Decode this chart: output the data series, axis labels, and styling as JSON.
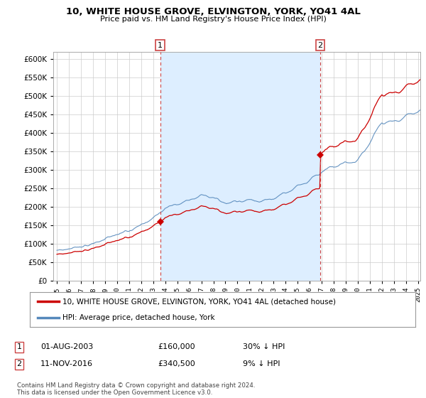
{
  "title": "10, WHITE HOUSE GROVE, ELVINGTON, YORK, YO41 4AL",
  "subtitle": "Price paid vs. HM Land Registry's House Price Index (HPI)",
  "ylim": [
    0,
    620000
  ],
  "yticks": [
    0,
    50000,
    100000,
    150000,
    200000,
    250000,
    300000,
    350000,
    400000,
    450000,
    500000,
    550000,
    600000
  ],
  "sale1_date": "01-AUG-2003",
  "sale1_price": 160000,
  "sale1_label": "1",
  "sale1_year": 2003.583,
  "sale2_date": "11-NOV-2016",
  "sale2_price": 340500,
  "sale2_label": "2",
  "sale2_year": 2016.871,
  "property_color": "#cc0000",
  "hpi_color": "#5588bb",
  "shade_color": "#ddeeff",
  "legend_property": "10, WHITE HOUSE GROVE, ELVINGTON, YORK, YO41 4AL (detached house)",
  "legend_hpi": "HPI: Average price, detached house, York",
  "footer": "Contains HM Land Registry data © Crown copyright and database right 2024.\nThis data is licensed under the Open Government Licence v3.0.",
  "background_color": "#ffffff",
  "grid_color": "#cccccc",
  "xmin": 1995.0,
  "xmax": 2025.2
}
